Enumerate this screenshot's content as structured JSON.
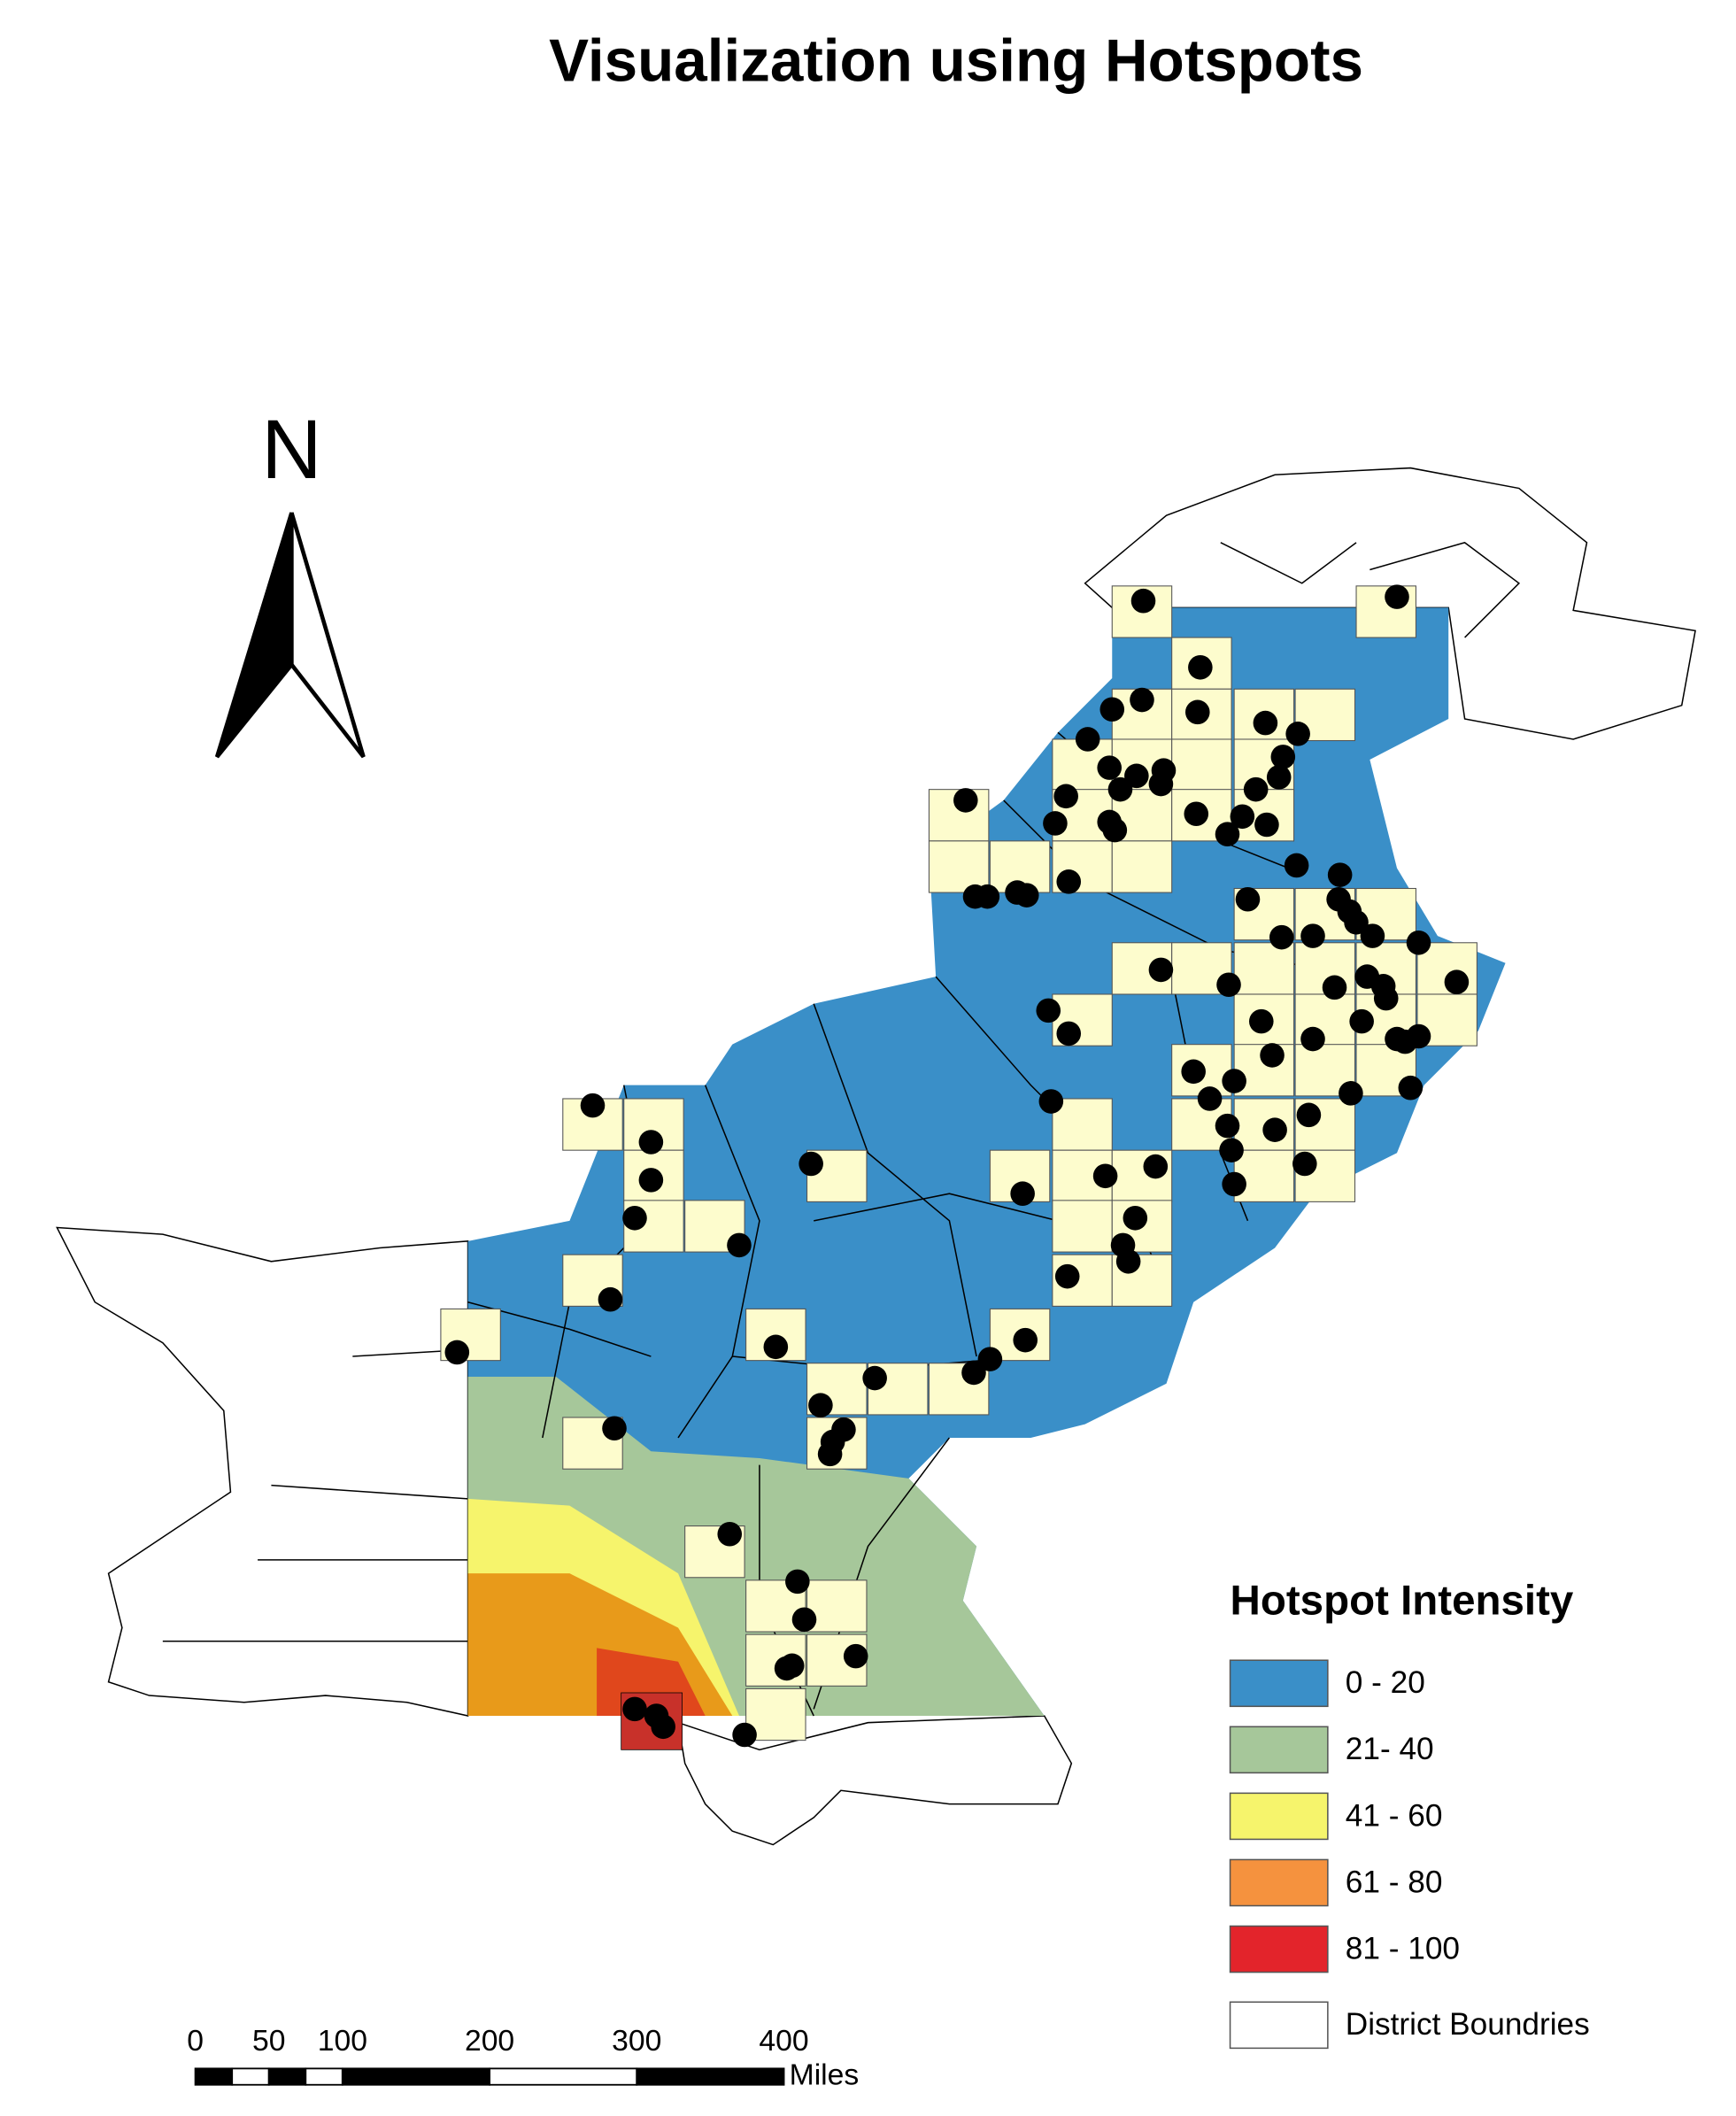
{
  "title": "Visualization using Hotspots",
  "north_label": "N",
  "legend": {
    "title": "Hotspot Intensity",
    "items": [
      {
        "label": "0 - 20",
        "color": "#3a8fc8"
      },
      {
        "label": "21- 40",
        "color": "#a6c79a"
      },
      {
        "label": "41 - 60",
        "color": "#f6f46c"
      },
      {
        "label": "61 - 80",
        "color": "#f5923e"
      },
      {
        "label": "81 - 100",
        "color": "#e3242b"
      },
      {
        "label": "District Boundries",
        "color": "#ffffff"
      }
    ]
  },
  "scale_bar": {
    "ticks": [
      0,
      50,
      100,
      200,
      300,
      400
    ],
    "unit": "Miles"
  }
}
